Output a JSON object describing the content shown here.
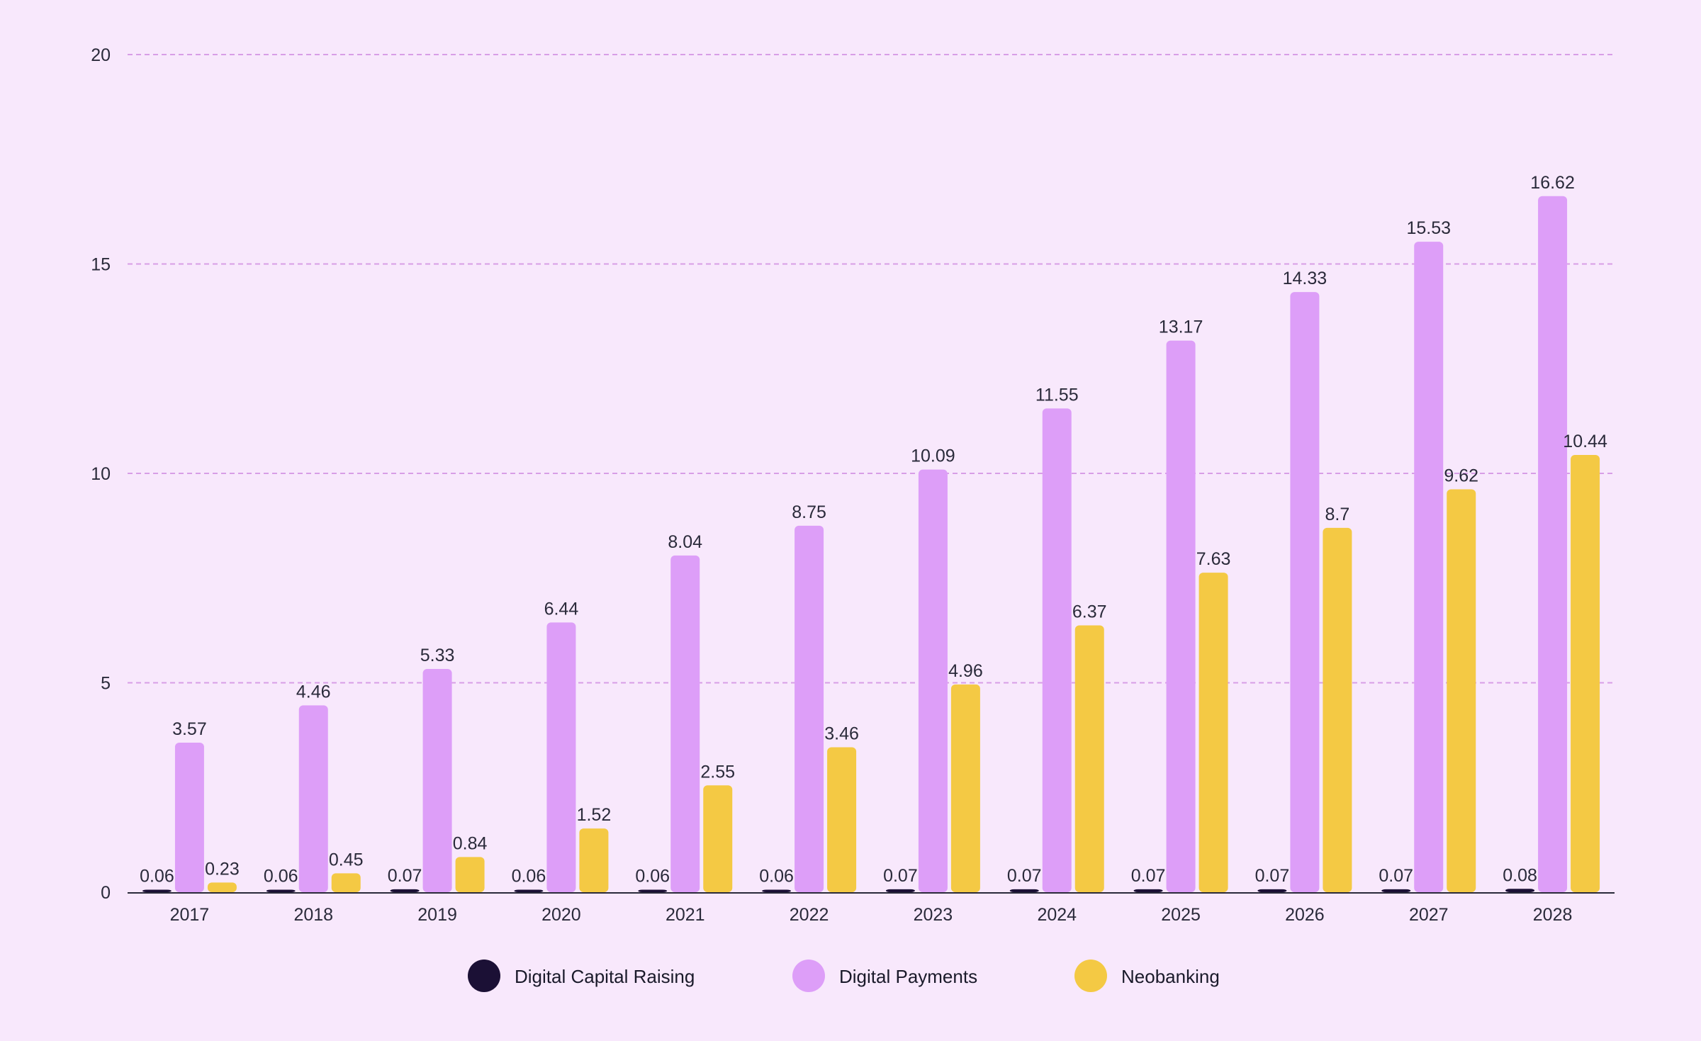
{
  "chart_data": {
    "type": "bar",
    "title": "",
    "xlabel": "",
    "ylabel": "",
    "categories": [
      "2017",
      "2018",
      "2019",
      "2020",
      "2021",
      "2022",
      "2023",
      "2024",
      "2025",
      "2026",
      "2027",
      "2028"
    ],
    "ylim": [
      0,
      20
    ],
    "yticks": [
      0,
      5,
      10,
      15,
      20
    ],
    "grid": true,
    "legend_position": "bottom",
    "series": [
      {
        "name": "Digital Capital Raising",
        "color": "#1b1035",
        "values": [
          0.06,
          0.06,
          0.07,
          0.06,
          0.06,
          0.06,
          0.07,
          0.07,
          0.07,
          0.07,
          0.07,
          0.08
        ],
        "labels": [
          "0.06",
          "0.06",
          "0.07",
          "0.06",
          "0.06",
          "0.06",
          "0.07",
          "0.07",
          "0.07",
          "0.07",
          "0.07",
          "0.08"
        ]
      },
      {
        "name": "Digital Payments",
        "color": "#dd9ef8",
        "values": [
          3.57,
          4.46,
          5.33,
          6.44,
          8.04,
          8.75,
          10.09,
          11.55,
          13.17,
          14.33,
          15.53,
          16.62
        ],
        "labels": [
          "3.57",
          "4.46",
          "5.33",
          "6.44",
          "8.04",
          "8.75",
          "10.09",
          "11.55",
          "13.17",
          "14.33",
          "15.53",
          "16.62"
        ]
      },
      {
        "name": "Neobanking",
        "color": "#f4c944",
        "values": [
          0.23,
          0.45,
          0.84,
          1.52,
          2.55,
          3.46,
          4.96,
          6.37,
          7.63,
          8.7,
          9.62,
          10.44
        ],
        "labels": [
          "0.23",
          "0.45",
          "0.84",
          "1.52",
          "2.55",
          "3.46",
          "4.96",
          "6.37",
          "7.63",
          "8.7",
          "9.62",
          "10.44"
        ]
      }
    ]
  },
  "colors": {
    "background": "#f8e8fc",
    "grid": "#d89ee6",
    "axis": "#2a2a3a"
  }
}
